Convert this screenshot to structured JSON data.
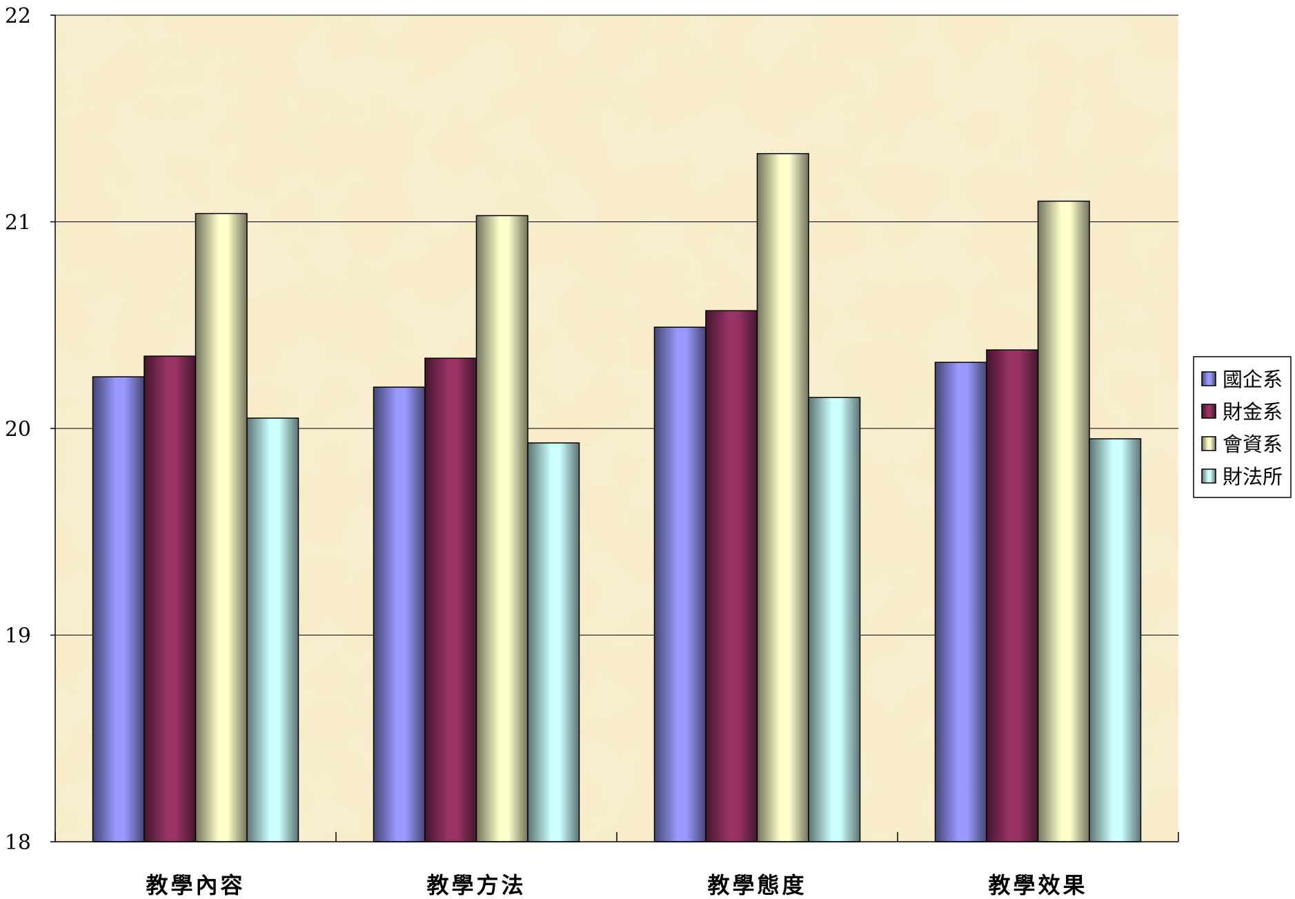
{
  "chart_data": {
    "type": "bar",
    "title": "",
    "xlabel": "",
    "ylabel": "",
    "ylim": [
      18,
      22
    ],
    "yticks": [
      18,
      19,
      20,
      21,
      22
    ],
    "grid": true,
    "legend_position": "right",
    "categories": [
      "教學內容",
      "教學方法",
      "教學態度",
      "教學效果"
    ],
    "series": [
      {
        "name": "國企系",
        "values": [
          20.25,
          20.2,
          20.49,
          20.32
        ],
        "color": "#9999ff"
      },
      {
        "name": "財金系",
        "values": [
          20.35,
          20.34,
          20.57,
          20.38
        ],
        "color": "#993366"
      },
      {
        "name": "會資系",
        "values": [
          21.04,
          21.03,
          21.33,
          21.1
        ],
        "color": "#ffffcc"
      },
      {
        "name": "財法所",
        "values": [
          20.05,
          19.93,
          20.15,
          19.95
        ],
        "color": "#ccffff"
      }
    ]
  },
  "colors": {
    "plot_background": "#f8ecc8",
    "gridline": "#000000"
  }
}
